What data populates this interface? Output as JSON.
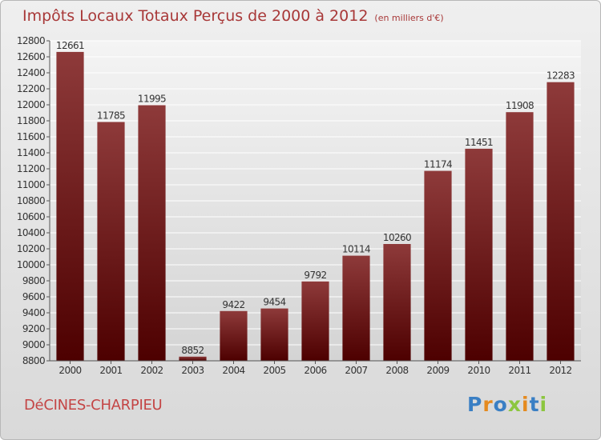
{
  "title": "Impôts Locaux Totaux Perçus de 2000 à 2012",
  "unit": "(en milliers d'€)",
  "commune": "DéCINES-CHARPIEU",
  "brand": {
    "text": "Proxiti",
    "letters": [
      {
        "ch": "P",
        "color": "#3a7fc4"
      },
      {
        "ch": "r",
        "color": "#e58a1f"
      },
      {
        "ch": "o",
        "color": "#3a7fc4"
      },
      {
        "ch": "x",
        "color": "#8cc63f"
      },
      {
        "ch": "i",
        "color": "#e58a1f"
      },
      {
        "ch": "t",
        "color": "#3a7fc4"
      },
      {
        "ch": "i",
        "color": "#8cc63f"
      }
    ]
  },
  "colors": {
    "bar_top": "#8e3a3a",
    "bar_bottom": "#4d0000",
    "plot_bg_top": "#f4f4f4",
    "plot_bg_bottom": "#d4d4d4"
  },
  "chart_data": {
    "type": "bar",
    "title": "Impôts Locaux Totaux Perçus de 2000 à 2012",
    "xlabel": "",
    "ylabel": "(en milliers d'€)",
    "categories": [
      "2000",
      "2001",
      "2002",
      "2003",
      "2004",
      "2005",
      "2006",
      "2007",
      "2008",
      "2009",
      "2010",
      "2011",
      "2012"
    ],
    "values": [
      12661,
      11785,
      11995,
      8852,
      9422,
      9454,
      9792,
      10114,
      10260,
      11174,
      11451,
      11908,
      12283
    ],
    "ylim": [
      8800,
      12800
    ],
    "yticks": [
      8800,
      9000,
      9200,
      9400,
      9600,
      9800,
      10000,
      10200,
      10400,
      10600,
      10800,
      11000,
      11200,
      11400,
      11600,
      11800,
      12000,
      12200,
      12400,
      12600,
      12800
    ],
    "grid": true
  }
}
